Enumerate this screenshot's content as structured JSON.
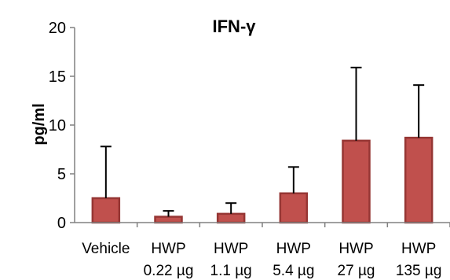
{
  "chart_data": {
    "type": "bar",
    "title": "IFN-γ",
    "ylabel": "pg/ml",
    "xlabel": "",
    "ylim": [
      0,
      20
    ],
    "yticks": [
      0,
      5,
      10,
      15,
      20
    ],
    "categories": [
      [
        "Vehicle"
      ],
      [
        "HWP",
        "0.22 µg"
      ],
      [
        "HWP",
        "1.1 µg"
      ],
      [
        "HWP",
        "5.4 µg"
      ],
      [
        "HWP",
        "27 µg"
      ],
      [
        "HWP",
        "135 µg"
      ]
    ],
    "values": [
      2.5,
      0.6,
      0.9,
      3.0,
      8.4,
      8.7
    ],
    "error_upper": [
      7.8,
      1.2,
      2.0,
      5.7,
      15.9,
      14.1
    ],
    "grid": false,
    "colors": {
      "bar_fill": "#c0504d",
      "bar_edge": "#963634",
      "error_bar": "#000000",
      "axis": "#808080"
    }
  }
}
